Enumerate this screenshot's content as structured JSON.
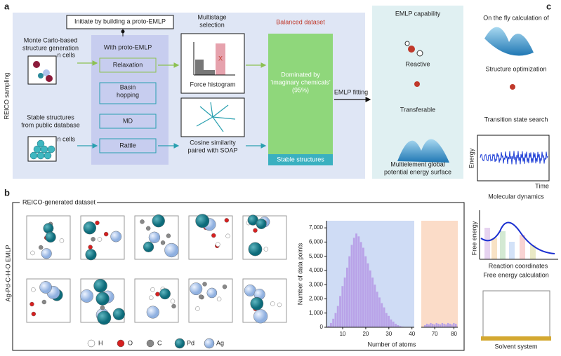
{
  "panel_labels": [
    "a",
    "b",
    "c"
  ],
  "panel_a": {
    "side_label": "REICO sampling",
    "initiate": "Initiate by building a proto-EMLP",
    "monte_carlo": [
      "Monte Carlo-based",
      "structure generation"
    ],
    "stable_public": [
      "Stable structures",
      "from public database"
    ],
    "n_cells": [
      "n cells",
      "n cells"
    ],
    "with_proto": "With proto-EMLP",
    "methods": [
      [
        "Relaxation"
      ],
      [
        "Basin",
        "hopping"
      ],
      [
        "MD"
      ],
      [
        "Rattle"
      ]
    ],
    "multistage": [
      "Multistage",
      "selection"
    ],
    "force_histogram": "Force histogram",
    "x_mark": "X",
    "cosine": [
      "Cosine similarity",
      "paired with SOAP"
    ],
    "balanced": "Balanced dataset",
    "dominated": [
      "Dominated by",
      "‘imaginary chemicals’",
      "(95%)"
    ],
    "stable_structures": "Stable structures",
    "emlp_fitting": "EMLP fitting",
    "capability_title": "EMLP capability",
    "capabilities": [
      [
        "Reactive"
      ],
      [
        "Transferable"
      ],
      [
        "Multielement global",
        "potential energy surface"
      ]
    ]
  },
  "panel_b": {
    "title": "REICO-generated dataset",
    "side_label": "Ag-Pd-C-H-O EMLP",
    "elements": [
      "H",
      "O",
      "C",
      "Pd",
      "Ag"
    ],
    "histogram": {
      "type": "histogram",
      "x_label": "Number of atoms",
      "y_label": "Number of data points",
      "color": "#b9a3e8",
      "xlim": [
        [
          3,
          41
        ],
        [
          63,
          82
        ]
      ],
      "xticks": [
        10,
        20,
        30,
        40,
        70,
        80
      ],
      "ylim": [
        0,
        7500
      ],
      "yticks": [
        0,
        {
          "value": 1000,
          "label": "1,000"
        },
        {
          "value": 2000,
          "label": "2,000"
        },
        {
          "value": 3000,
          "label": "3,000"
        },
        {
          "value": 4000,
          "label": "4,000"
        },
        {
          "value": 5000,
          "label": "5,000"
        },
        {
          "value": 6000,
          "label": "6,000"
        },
        {
          "value": 7000,
          "label": "7,000"
        }
      ],
      "x": [
        4,
        5,
        6,
        7,
        8,
        9,
        10,
        11,
        12,
        13,
        14,
        15,
        16,
        17,
        18,
        19,
        20,
        21,
        22,
        23,
        24,
        25,
        26,
        27,
        28,
        29,
        30,
        31,
        32,
        33,
        34,
        35,
        36,
        37,
        65,
        66,
        67,
        68,
        69,
        70,
        71,
        72,
        73,
        74,
        75,
        76,
        77,
        78,
        79,
        80,
        81,
        82
      ],
      "values": [
        100,
        300,
        600,
        1000,
        1500,
        2200,
        2900,
        3500,
        4200,
        5000,
        5800,
        6300,
        6600,
        6400,
        6000,
        5600,
        5000,
        4500,
        4000,
        3500,
        3000,
        2500,
        2100,
        1700,
        1400,
        1000,
        800,
        550,
        400,
        250,
        150,
        80,
        40,
        20,
        150,
        250,
        200,
        300,
        250,
        200,
        300,
        250,
        200,
        300,
        250,
        200,
        300,
        250,
        200,
        300,
        250,
        200
      ]
    }
  },
  "panel_c": {
    "heading": "On the fly calculation of",
    "items": [
      "Structure optimization",
      "Transition state search",
      "Molecular dynamics",
      "Free energy calculation",
      "Solvent system"
    ],
    "md_axes": [
      "Energy",
      "Time"
    ],
    "fe_axes": [
      "Free energy",
      "Reaction coordinates"
    ]
  }
}
